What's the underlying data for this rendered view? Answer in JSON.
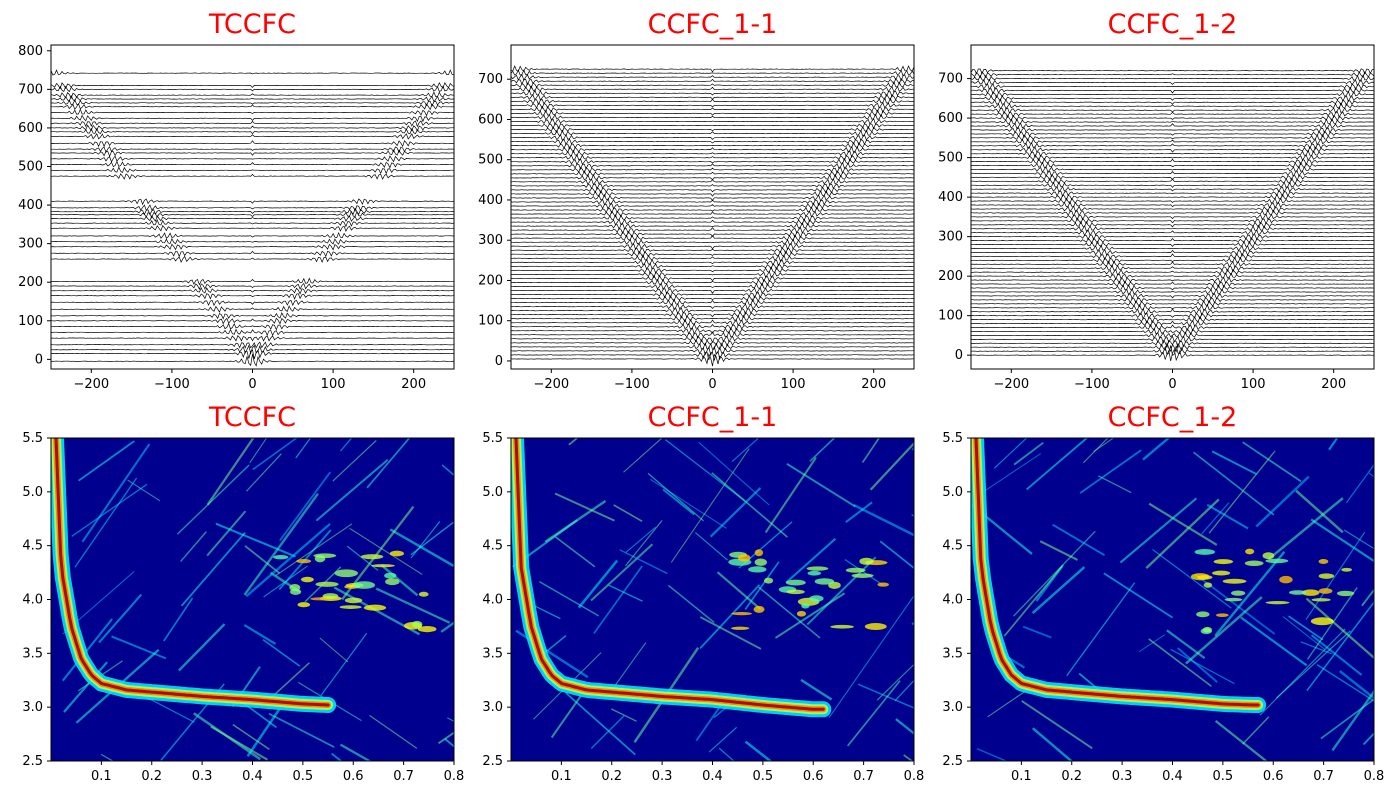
{
  "colors": {
    "title": "#ff0000",
    "trace": "#000000",
    "colormap": "jet",
    "background_low": "#00008f"
  },
  "chart_data": [
    {
      "type": "line",
      "panel": "top-left",
      "title": "TCCFC",
      "description": "seismic record section: wiggle traces of cross-correlation functions, offset on y axis, lag time on x axis",
      "xlim": [
        -250,
        250
      ],
      "ylim": [
        -25,
        815
      ],
      "xticks": [
        -200,
        -100,
        0,
        100,
        200
      ],
      "yticks": [
        0,
        100,
        200,
        300,
        400,
        500,
        600,
        700,
        800
      ],
      "trace_offsets": [
        -5,
        15,
        25,
        38,
        55,
        70,
        85,
        100,
        113,
        130,
        148,
        165,
        178,
        190,
        202,
        260,
        275,
        292,
        305,
        320,
        340,
        353,
        365,
        375,
        383,
        393,
        410,
        475,
        490,
        505,
        520,
        535,
        545,
        560,
        578,
        590,
        600,
        612,
        625,
        640,
        655,
        665,
        675,
        685,
        700,
        710,
        742
      ],
      "moveout_velocity_m_per_s": 3.0,
      "xlabel": "",
      "ylabel": ""
    },
    {
      "type": "line",
      "panel": "top-center",
      "title": "CCFC_1-1",
      "xlim": [
        -250,
        250
      ],
      "ylim": [
        -20,
        785
      ],
      "xticks": [
        -200,
        -100,
        0,
        100,
        200
      ],
      "yticks": [
        0,
        100,
        200,
        300,
        400,
        500,
        600,
        700
      ],
      "trace_offset_step": 10,
      "trace_offset_range": [
        5,
        725
      ],
      "moveout_velocity_m_per_s": 3.0,
      "xlabel": "",
      "ylabel": ""
    },
    {
      "type": "line",
      "panel": "top-right",
      "title": "CCFC_1-2",
      "xlim": [
        -250,
        250
      ],
      "ylim": [
        -35,
        785
      ],
      "xticks": [
        -200,
        -100,
        0,
        100,
        200
      ],
      "yticks": [
        0,
        100,
        200,
        300,
        400,
        500,
        600,
        700
      ],
      "trace_offset_step": 10,
      "trace_offset_range": [
        0,
        725
      ],
      "moveout_velocity_m_per_s": 3.0,
      "xlabel": "",
      "ylabel": ""
    },
    {
      "type": "heatmap",
      "panel": "bottom-left",
      "title": "TCCFC",
      "description": "dispersion image (phase velocity vs frequency), jet colormap",
      "xlim": [
        0,
        0.8
      ],
      "ylim": [
        2.5,
        5.5
      ],
      "xticks": [
        0.1,
        0.2,
        0.3,
        0.4,
        0.5,
        0.6,
        0.7,
        0.8
      ],
      "yticks": [
        2.5,
        3.0,
        3.5,
        4.0,
        4.5,
        5.0,
        5.5
      ],
      "fundamental_mode": {
        "x": [
          0.01,
          0.02,
          0.04,
          0.06,
          0.08,
          0.1,
          0.15,
          0.2,
          0.3,
          0.4,
          0.5,
          0.55
        ],
        "y": [
          5.5,
          4.3,
          3.75,
          3.45,
          3.3,
          3.22,
          3.16,
          3.14,
          3.1,
          3.07,
          3.03,
          3.02
        ],
        "end_x": 0.55
      },
      "xlabel": "",
      "ylabel": ""
    },
    {
      "type": "heatmap",
      "panel": "bottom-center",
      "title": "CCFC_1-1",
      "xlim": [
        0,
        0.8
      ],
      "ylim": [
        2.5,
        5.5
      ],
      "xticks": [
        0.1,
        0.2,
        0.3,
        0.4,
        0.5,
        0.6,
        0.7,
        0.8
      ],
      "yticks": [
        2.5,
        3.0,
        3.5,
        4.0,
        4.5,
        5.0,
        5.5
      ],
      "fundamental_mode": {
        "x": [
          0.01,
          0.02,
          0.04,
          0.06,
          0.08,
          0.1,
          0.15,
          0.2,
          0.3,
          0.4,
          0.5,
          0.6
        ],
        "y": [
          5.5,
          4.3,
          3.75,
          3.45,
          3.3,
          3.22,
          3.16,
          3.14,
          3.1,
          3.07,
          3.02,
          2.98
        ],
        "end_x": 0.62
      },
      "xlabel": "",
      "ylabel": ""
    },
    {
      "type": "heatmap",
      "panel": "bottom-right",
      "title": "CCFC_1-2",
      "xlim": [
        0,
        0.8
      ],
      "ylim": [
        2.5,
        5.5
      ],
      "xticks": [
        0.1,
        0.2,
        0.3,
        0.4,
        0.5,
        0.6,
        0.7,
        0.8
      ],
      "yticks": [
        2.5,
        3.0,
        3.5,
        4.0,
        4.5,
        5.0,
        5.5
      ],
      "fundamental_mode": {
        "x": [
          0.01,
          0.02,
          0.04,
          0.06,
          0.08,
          0.1,
          0.15,
          0.2,
          0.3,
          0.4,
          0.5,
          0.56
        ],
        "y": [
          5.5,
          4.3,
          3.75,
          3.45,
          3.3,
          3.22,
          3.16,
          3.14,
          3.1,
          3.07,
          3.03,
          3.02
        ],
        "end_x": 0.57
      },
      "xlabel": "",
      "ylabel": ""
    }
  ]
}
